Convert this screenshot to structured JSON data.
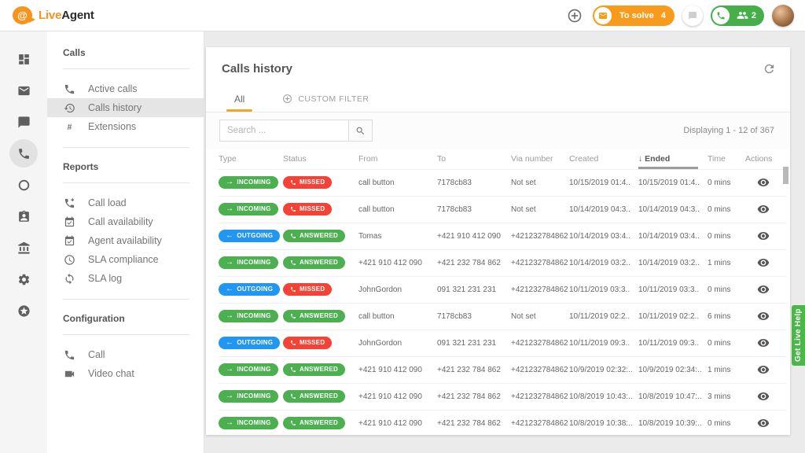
{
  "header": {
    "logo": {
      "at_symbol": "@",
      "brand_live": "Live",
      "brand_agent": "Agent"
    },
    "to_solve": {
      "label": "To solve",
      "count": "4",
      "color": "#f89b1c"
    },
    "call_widget": {
      "count": "2",
      "color": "#46af4a"
    }
  },
  "rail": {
    "items": [
      {
        "name": "dashboard",
        "active": false
      },
      {
        "name": "mail",
        "active": false
      },
      {
        "name": "chat",
        "active": false
      },
      {
        "name": "phone",
        "active": true
      },
      {
        "name": "ring",
        "active": false
      },
      {
        "name": "contacts",
        "active": false
      },
      {
        "name": "bank",
        "active": false
      },
      {
        "name": "gear",
        "active": false
      },
      {
        "name": "star-circle",
        "active": false
      }
    ]
  },
  "sidebar": {
    "sections": [
      {
        "title": "Calls",
        "items": [
          {
            "icon": "phone",
            "label": "Active calls",
            "active": false
          },
          {
            "icon": "history",
            "label": "Calls history",
            "active": true
          },
          {
            "icon": "hash",
            "label": "Extensions",
            "active": false
          }
        ]
      },
      {
        "title": "Reports",
        "items": [
          {
            "icon": "phone-add",
            "label": "Call load",
            "active": false
          },
          {
            "icon": "calendar-check",
            "label": "Call availability",
            "active": false
          },
          {
            "icon": "calendar-check",
            "label": "Agent availability",
            "active": false
          },
          {
            "icon": "clock",
            "label": "SLA compliance",
            "active": false
          },
          {
            "icon": "loop",
            "label": "SLA log",
            "active": false
          }
        ]
      },
      {
        "title": "Configuration",
        "items": [
          {
            "icon": "phone",
            "label": "Call",
            "active": false
          },
          {
            "icon": "videocam",
            "label": "Video chat",
            "active": false
          }
        ]
      }
    ]
  },
  "main": {
    "title": "Calls history",
    "tabs": [
      {
        "label": "All",
        "active": true
      },
      {
        "label": "CUSTOM FILTER",
        "active": false
      }
    ],
    "search_placeholder": "Search ...",
    "displaying": "Displaying 1 - 12 of 367",
    "table": {
      "columns": [
        "Type",
        "Status",
        "From",
        "To",
        "Via number",
        "Created",
        "Ended",
        "Time",
        "Actions"
      ],
      "sorted_column": "Ended",
      "rows": [
        {
          "type": "INCOMING",
          "status": "MISSED",
          "from": "call button",
          "to": "7178cb83",
          "via": "Not set",
          "created": "10/15/2019 01:4..",
          "ended": "10/15/2019 01:4..",
          "time": "0 mins"
        },
        {
          "type": "INCOMING",
          "status": "MISSED",
          "from": "call button",
          "to": "7178cb83",
          "via": "Not set",
          "created": "10/14/2019 04:3..",
          "ended": "10/14/2019 04:3..",
          "time": "0 mins"
        },
        {
          "type": "OUTGOING",
          "status": "ANSWERED",
          "from": "Tomas",
          "to": "+421 910 412 090",
          "via": "+421232784862",
          "created": "10/14/2019 03:4..",
          "ended": "10/14/2019 03:4..",
          "time": "0 mins"
        },
        {
          "type": "INCOMING",
          "status": "ANSWERED",
          "from": "+421 910 412 090",
          "to": "+421 232 784 862",
          "via": "+421232784862",
          "created": "10/14/2019 03:2..",
          "ended": "10/14/2019 03:2..",
          "time": "1 mins"
        },
        {
          "type": "OUTGOING",
          "status": "MISSED",
          "from": "JohnGordon",
          "to": "091 321 231 231",
          "via": "+421232784862",
          "created": "10/11/2019 03:3..",
          "ended": "10/11/2019 03:3..",
          "time": "0 mins"
        },
        {
          "type": "INCOMING",
          "status": "ANSWERED",
          "from": "call button",
          "to": "7178cb83",
          "via": "Not set",
          "created": "10/11/2019 02:2..",
          "ended": "10/11/2019 02:2..",
          "time": "6 mins"
        },
        {
          "type": "OUTGOING",
          "status": "MISSED",
          "from": "JohnGordon",
          "to": "091 321 231 231",
          "via": "+421232784862",
          "created": "10/11/2019 09:3..",
          "ended": "10/11/2019 09:3..",
          "time": "0 mins"
        },
        {
          "type": "INCOMING",
          "status": "ANSWERED",
          "from": "+421 910 412 090",
          "to": "+421 232 784 862",
          "via": "+421232784862",
          "created": "10/9/2019 02:32:..",
          "ended": "10/9/2019 02:34:..",
          "time": "1 mins"
        },
        {
          "type": "INCOMING",
          "status": "ANSWERED",
          "from": "+421 910 412 090",
          "to": "+421 232 784 862",
          "via": "+421232784862",
          "created": "10/8/2019 10:43:..",
          "ended": "10/8/2019 10:47:..",
          "time": "3 mins"
        },
        {
          "type": "INCOMING",
          "status": "ANSWERED",
          "from": "+421 910 412 090",
          "to": "+421 232 784 862",
          "via": "+421232784862",
          "created": "10/8/2019 10:38:..",
          "ended": "10/8/2019 10:39:..",
          "time": "0 mins"
        }
      ]
    }
  },
  "badges": {
    "INCOMING": {
      "label": "INCOMING",
      "arrow": "→",
      "color": "#4caf50"
    },
    "OUTGOING": {
      "label": "OUTGOING",
      "arrow": "←",
      "color": "#2196f3"
    },
    "ANSWERED": {
      "label": "ANSWERED",
      "color": "#4caf50"
    },
    "MISSED": {
      "label": "MISSED",
      "color": "#f44336"
    }
  },
  "help_button": {
    "label": "Get Live Help",
    "color": "#4cb749"
  }
}
